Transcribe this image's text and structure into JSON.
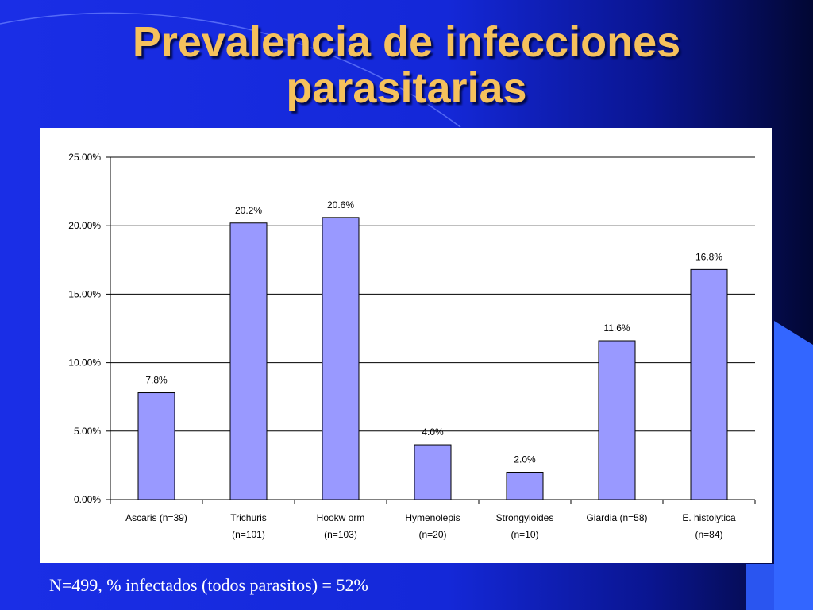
{
  "slide": {
    "title_line1": "Prevalencia de infecciones",
    "title_line2": "parasitarias",
    "footer": "N=499, % infectados (todos parasitos) = 52%"
  },
  "colors": {
    "background": "#1428d8",
    "title": "#f5c15c",
    "bar_fill": "#9999ff",
    "bar_stroke": "#000000",
    "panel": "#ffffff"
  },
  "chart_data": {
    "type": "bar",
    "categories": [
      [
        "Ascaris (n=39)"
      ],
      [
        "Trichuris",
        "(n=101)"
      ],
      [
        "Hookw orm",
        "(n=103)"
      ],
      [
        "Hymenolepis",
        "(n=20)"
      ],
      [
        "Strongyloides",
        "(n=10)"
      ],
      [
        "Giardia (n=58)"
      ],
      [
        "E. histolytica",
        "(n=84)"
      ]
    ],
    "values": [
      7.8,
      20.2,
      20.6,
      4.0,
      2.0,
      11.6,
      16.8
    ],
    "data_labels": [
      "7.8%",
      "20.2%",
      "20.6%",
      "4.0%",
      "2.0%",
      "11.6%",
      "16.8%"
    ],
    "yticks": [
      0,
      5,
      10,
      15,
      20,
      25
    ],
    "ytick_labels": [
      "0.00%",
      "5.00%",
      "10.00%",
      "15.00%",
      "20.00%",
      "25.00%"
    ],
    "ylim": [
      0,
      25
    ],
    "grid": true,
    "legend": "none"
  }
}
